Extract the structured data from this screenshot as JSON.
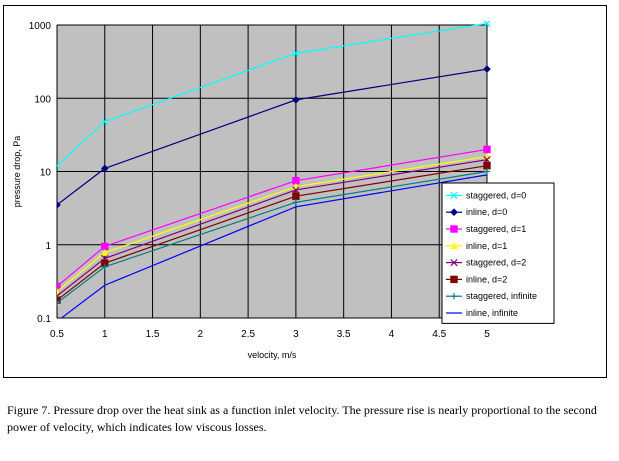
{
  "caption": "Figure 7. Pressure drop over the heat sink as a function inlet velocity. The pressure rise is nearly proportional to the second power of velocity, which indicates low viscous losses.",
  "chart_data": {
    "type": "line",
    "title": "",
    "xlabel": "velocity, m/s",
    "ylabel": "pressure drop, Pa",
    "xlim": [
      0.5,
      5
    ],
    "ylim": [
      0.1,
      1000
    ],
    "yscale": "log",
    "x_ticks": [
      "0.5",
      "1",
      "1.5",
      "2",
      "2.5",
      "3",
      "3.5",
      "4",
      "4.5",
      "5"
    ],
    "y_ticks": [
      "0.1",
      "1",
      "10",
      "100",
      "1000"
    ],
    "grid": true,
    "plot_background": "#c0c0c0",
    "legend_position": "right, lower",
    "x": [
      0.5,
      1,
      3,
      5
    ],
    "series": [
      {
        "name": "staggered, d=0",
        "color": "#00ffff",
        "marker": "x",
        "values": [
          12,
          48,
          410,
          1050
        ]
      },
      {
        "name": "inline, d=0",
        "color": "#000080",
        "marker": "diamond",
        "values": [
          3.5,
          11,
          95,
          250
        ]
      },
      {
        "name": "staggered, d=1",
        "color": "#ff00ff",
        "marker": "square",
        "values": [
          0.27,
          0.95,
          7.5,
          20
        ]
      },
      {
        "name": "inline, d=1",
        "color": "#ffff00",
        "marker": "triangle",
        "values": [
          0.23,
          0.78,
          6.2,
          16
        ]
      },
      {
        "name": "staggered, d=2",
        "color": "#800080",
        "marker": "x",
        "values": [
          0.2,
          0.65,
          5.6,
          14.5
        ]
      },
      {
        "name": "inline, d=2",
        "color": "#800000",
        "marker": "square",
        "values": [
          0.175,
          0.56,
          4.6,
          12
        ]
      },
      {
        "name": "staggered, infinite",
        "color": "#008080",
        "marker": "plus",
        "values": [
          0.16,
          0.5,
          3.8,
          10
        ]
      },
      {
        "name": "inline, infinite",
        "color": "#0000ff",
        "marker": "none",
        "values": [
          0.09,
          0.28,
          3.3,
          9
        ]
      }
    ]
  }
}
